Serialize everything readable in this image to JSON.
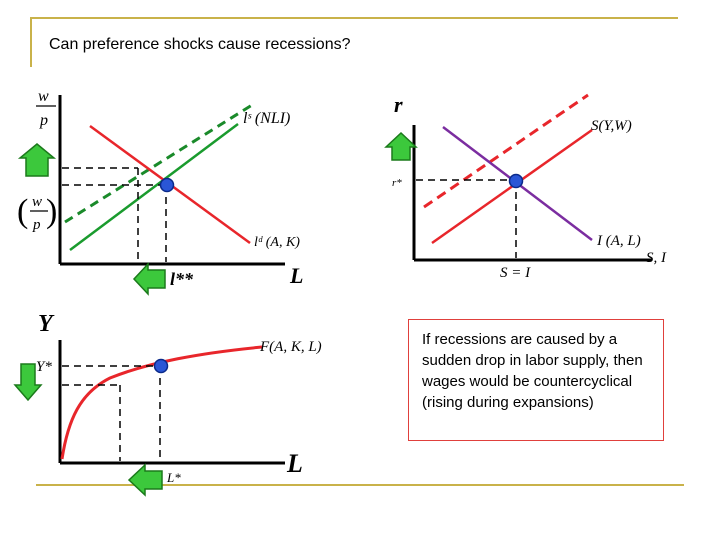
{
  "slide": {
    "title": "Can preference shocks cause recessions?",
    "note": "If recessions are caused by a sudden drop in labor supply, then wages would be countercyclical (rising during expansions)"
  },
  "labor_market": {
    "y_axis_top": "w",
    "y_axis_bottom": "p",
    "eq_wage_top": "w",
    "eq_wage_bottom": "p",
    "supply_label": "lˢ (NLI)",
    "demand_label": "lᵈ (A, K)",
    "eq_quantity": "l**",
    "x_axis": "L"
  },
  "capital_market": {
    "y_axis": "r",
    "eq_rate": "r*",
    "saving_label": "S(Y,W)",
    "investment_label": "I (A, L)",
    "x_axis": "S, I",
    "eq_label": "S = I"
  },
  "production": {
    "y_axis": "Y",
    "eq_output": "Y*",
    "function_label": "F(A, K, L)",
    "eq_labor": "L*",
    "x_axis": "L"
  },
  "colors": {
    "frame": "#c9b24a",
    "red": "#e8262b",
    "green": "#1a9b2e",
    "purple": "#7b2da0",
    "arrow_green": "#3cc83c",
    "eq_point": "#2a56d6"
  }
}
